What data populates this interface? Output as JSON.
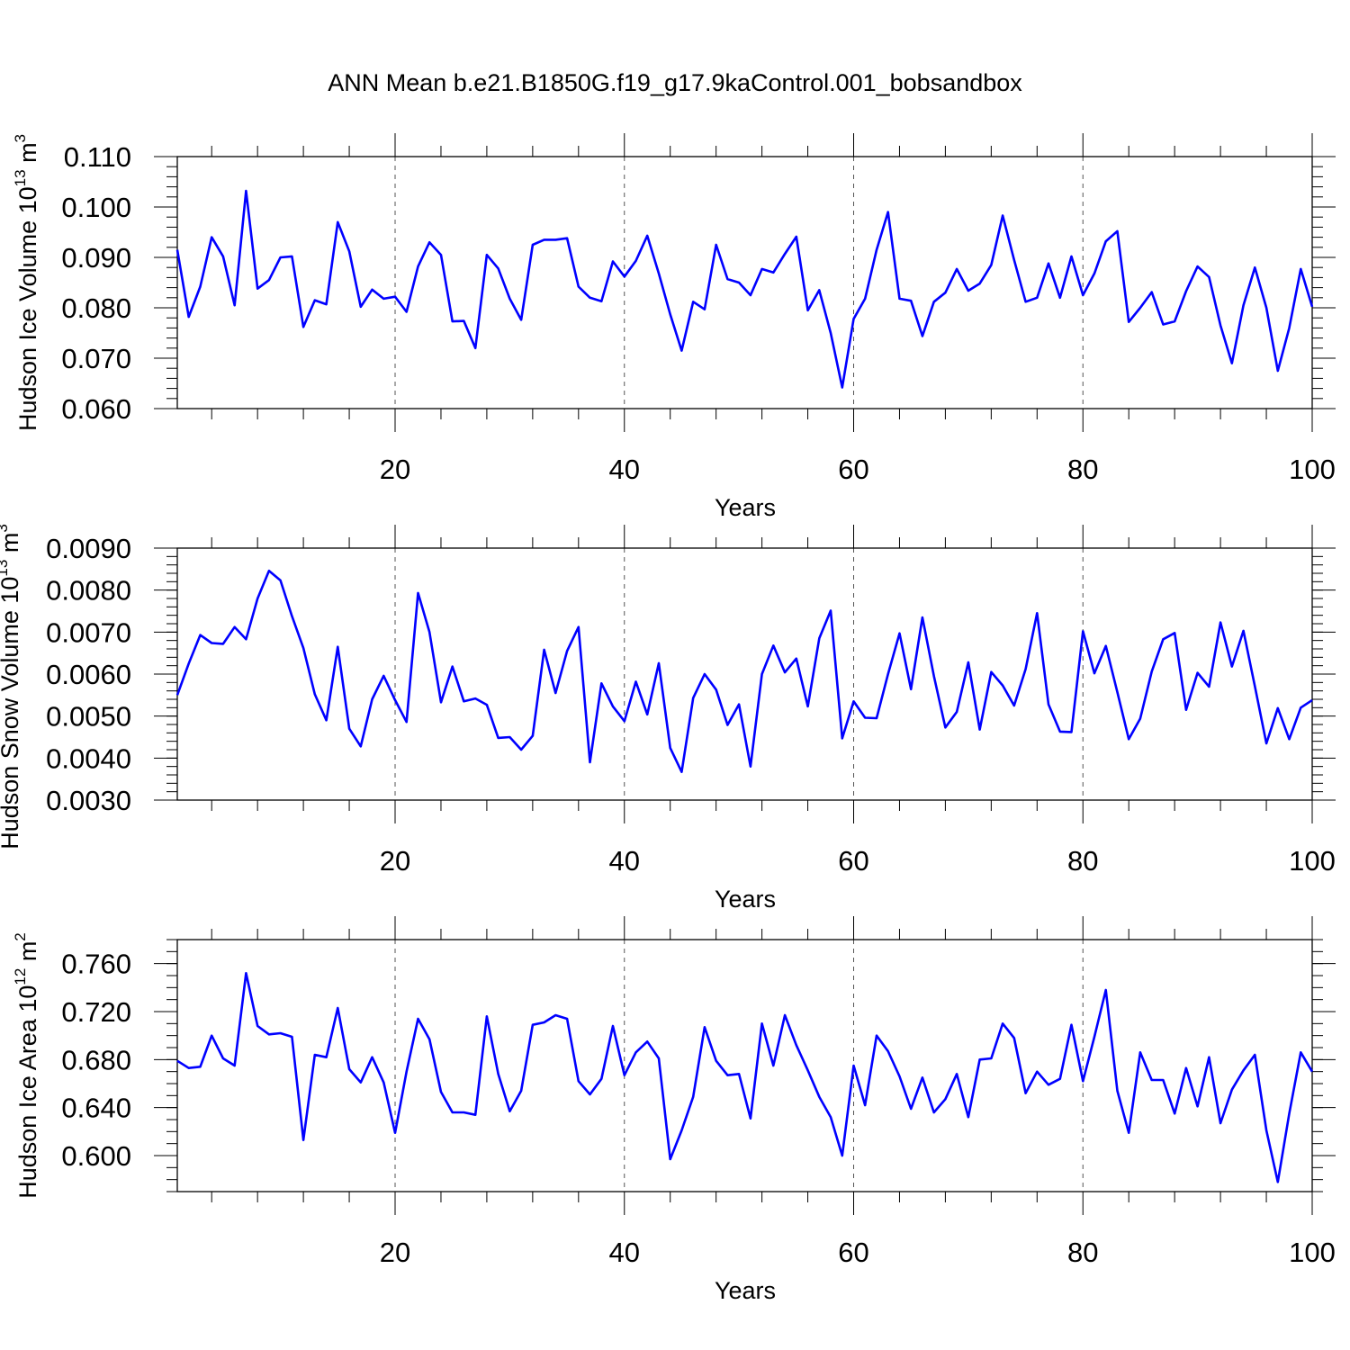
{
  "title": "ANN Mean b.e21.B1850G.f19_g17.9kaControl.001_bobsandbox",
  "line_color": "#0000ff",
  "chart_data": [
    {
      "type": "line",
      "xlabel": "Years",
      "ylabel": {
        "text": "Hudson Ice Volume 10",
        "exp": "13",
        "unit": " m",
        "unit_exp": "3"
      },
      "xlim": [
        1,
        100
      ],
      "ylim": [
        0.06,
        0.11
      ],
      "x_ticks": [
        "20",
        "40",
        "60",
        "80",
        "100"
      ],
      "x_tick_values": [
        20,
        40,
        60,
        80,
        100
      ],
      "y_ticks": [
        "0.060",
        "0.070",
        "0.080",
        "0.090",
        "0.100",
        "0.110"
      ],
      "y_tick_values": [
        0.06,
        0.07,
        0.08,
        0.09,
        0.1,
        0.11
      ],
      "y_minor_step": 0.002,
      "x_minor_step": 4,
      "grid": "x-dashed",
      "values": [
        0.0915,
        0.0782,
        0.0842,
        0.094,
        0.0902,
        0.0805,
        0.1032,
        0.0838,
        0.0855,
        0.09,
        0.0902,
        0.0762,
        0.0815,
        0.0807,
        0.097,
        0.0912,
        0.0802,
        0.0836,
        0.0818,
        0.0822,
        0.0792,
        0.0882,
        0.093,
        0.0905,
        0.0773,
        0.0774,
        0.072,
        0.0905,
        0.0878,
        0.0818,
        0.0776,
        0.0925,
        0.0935,
        0.0935,
        0.0938,
        0.0842,
        0.082,
        0.0813,
        0.0892,
        0.0862,
        0.0893,
        0.0943,
        0.0868,
        0.0787,
        0.0715,
        0.0812,
        0.0797,
        0.0925,
        0.0857,
        0.085,
        0.0825,
        0.0877,
        0.087,
        0.0907,
        0.0941,
        0.0795,
        0.0835,
        0.075,
        0.0642,
        0.0778,
        0.0818,
        0.0915,
        0.099,
        0.0818,
        0.0814,
        0.0744,
        0.0812,
        0.083,
        0.0877,
        0.0834,
        0.0848,
        0.0885,
        0.0983,
        0.0895,
        0.0812,
        0.082,
        0.0888,
        0.082,
        0.0902,
        0.0825,
        0.0868,
        0.0932,
        0.0952,
        0.0772,
        0.08,
        0.0831,
        0.0767,
        0.0773,
        0.0833,
        0.0882,
        0.0861,
        0.0765,
        0.069,
        0.0805,
        0.088,
        0.08,
        0.0675,
        0.076,
        0.0877,
        0.0802
      ]
    },
    {
      "type": "line",
      "xlabel": "Years",
      "ylabel": {
        "text": "Hudson Snow Volume 10",
        "exp": "13",
        "unit": " m",
        "unit_exp": "3"
      },
      "xlim": [
        1,
        100
      ],
      "ylim": [
        0.003,
        0.009
      ],
      "x_ticks": [
        "20",
        "40",
        "60",
        "80",
        "100"
      ],
      "x_tick_values": [
        20,
        40,
        60,
        80,
        100
      ],
      "y_ticks": [
        "0.0030",
        "0.0040",
        "0.0050",
        "0.0060",
        "0.0070",
        "0.0080",
        "0.0090"
      ],
      "y_tick_values": [
        0.003,
        0.004,
        0.005,
        0.006,
        0.007,
        0.008,
        0.009
      ],
      "y_minor_step": 0.0002,
      "x_minor_step": 4,
      "grid": "x-dashed",
      "values": [
        0.0055,
        0.00625,
        0.00693,
        0.00674,
        0.00672,
        0.00712,
        0.00683,
        0.0078,
        0.00846,
        0.00823,
        0.00738,
        0.00662,
        0.00552,
        0.0049,
        0.00665,
        0.0047,
        0.00428,
        0.0054,
        0.00596,
        0.00538,
        0.00486,
        0.00793,
        0.007,
        0.00533,
        0.00618,
        0.00535,
        0.00542,
        0.00527,
        0.00448,
        0.0045,
        0.0042,
        0.00453,
        0.00658,
        0.00555,
        0.00655,
        0.00712,
        0.0039,
        0.00578,
        0.00523,
        0.00488,
        0.00582,
        0.00504,
        0.00626,
        0.00424,
        0.00367,
        0.00543,
        0.006,
        0.00563,
        0.00479,
        0.00528,
        0.0038,
        0.006,
        0.00668,
        0.00604,
        0.00637,
        0.00523,
        0.00685,
        0.00751,
        0.00447,
        0.00535,
        0.00496,
        0.00495,
        0.006,
        0.00697,
        0.00564,
        0.00735,
        0.00595,
        0.00473,
        0.0051,
        0.00628,
        0.00468,
        0.00605,
        0.00573,
        0.00525,
        0.00612,
        0.00745,
        0.00528,
        0.00463,
        0.00462,
        0.00702,
        0.00602,
        0.00667,
        0.00557,
        0.00445,
        0.00494,
        0.00606,
        0.00683,
        0.00698,
        0.00515,
        0.00603,
        0.0057,
        0.00723,
        0.00618,
        0.00703,
        0.00571,
        0.00435,
        0.00519,
        0.00445,
        0.0052,
        0.00538
      ]
    },
    {
      "type": "line",
      "xlabel": "Years",
      "ylabel": {
        "text": "Hudson Ice Area 10",
        "exp": "12",
        "unit": " m",
        "unit_exp": "2"
      },
      "xlim": [
        1,
        100
      ],
      "ylim": [
        0.57,
        0.78
      ],
      "x_ticks": [
        "20",
        "40",
        "60",
        "80",
        "100"
      ],
      "x_tick_values": [
        20,
        40,
        60,
        80,
        100
      ],
      "y_ticks": [
        "0.600",
        "0.640",
        "0.680",
        "0.720",
        "0.760"
      ],
      "y_tick_values": [
        0.6,
        0.64,
        0.68,
        0.72,
        0.76
      ],
      "y_minor_step": 0.01,
      "x_minor_step": 4,
      "grid": "x-dashed",
      "values": [
        0.679,
        0.673,
        0.674,
        0.7,
        0.681,
        0.675,
        0.752,
        0.708,
        0.701,
        0.702,
        0.699,
        0.613,
        0.684,
        0.682,
        0.723,
        0.672,
        0.661,
        0.682,
        0.661,
        0.619,
        0.67,
        0.714,
        0.697,
        0.653,
        0.636,
        0.636,
        0.634,
        0.716,
        0.668,
        0.637,
        0.654,
        0.709,
        0.711,
        0.717,
        0.714,
        0.662,
        0.651,
        0.664,
        0.708,
        0.667,
        0.686,
        0.695,
        0.681,
        0.597,
        0.621,
        0.649,
        0.707,
        0.679,
        0.667,
        0.668,
        0.631,
        0.71,
        0.675,
        0.717,
        0.692,
        0.671,
        0.649,
        0.632,
        0.6,
        0.675,
        0.642,
        0.7,
        0.687,
        0.666,
        0.639,
        0.665,
        0.636,
        0.647,
        0.668,
        0.632,
        0.68,
        0.681,
        0.71,
        0.698,
        0.652,
        0.67,
        0.659,
        0.664,
        0.709,
        0.662,
        0.699,
        0.738,
        0.654,
        0.619,
        0.686,
        0.663,
        0.663,
        0.635,
        0.673,
        0.641,
        0.682,
        0.627,
        0.655,
        0.671,
        0.684,
        0.621,
        0.578,
        0.635,
        0.686,
        0.67
      ]
    }
  ]
}
